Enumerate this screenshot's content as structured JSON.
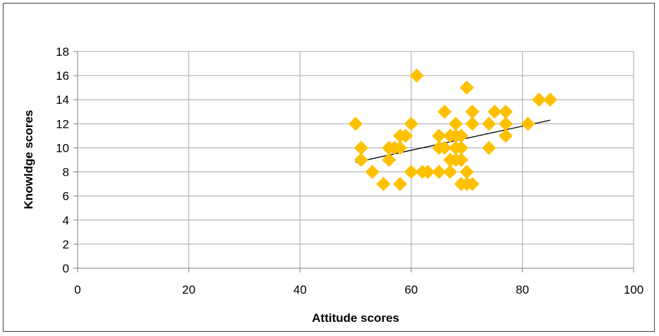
{
  "chart_data": {
    "type": "scatter",
    "title": "",
    "xlabel": "Attitude scores",
    "ylabel": "Knowldge scores",
    "xlim": [
      0,
      100
    ],
    "ylim": [
      0,
      18
    ],
    "xticks": [
      0,
      20,
      40,
      60,
      80,
      100
    ],
    "yticks": [
      0,
      2,
      4,
      6,
      8,
      10,
      12,
      14,
      16,
      18
    ],
    "grid": true,
    "legend": "none",
    "marker": "diamond",
    "marker_color": "#FFC000",
    "trendline": {
      "type": "linear",
      "from": [
        50,
        8.8
      ],
      "to": [
        85,
        12.3
      ],
      "color": "#000000"
    },
    "points": [
      [
        50,
        12
      ],
      [
        51,
        10
      ],
      [
        51,
        9
      ],
      [
        53,
        8
      ],
      [
        55,
        7
      ],
      [
        56,
        9
      ],
      [
        56,
        10
      ],
      [
        57,
        10
      ],
      [
        58,
        11
      ],
      [
        58,
        10
      ],
      [
        58,
        7
      ],
      [
        59,
        11
      ],
      [
        60,
        12
      ],
      [
        60,
        8
      ],
      [
        61,
        16
      ],
      [
        62,
        8
      ],
      [
        63,
        8
      ],
      [
        65,
        11
      ],
      [
        65,
        10
      ],
      [
        65,
        8
      ],
      [
        66,
        13
      ],
      [
        66,
        10
      ],
      [
        67,
        11
      ],
      [
        67,
        9
      ],
      [
        67,
        8
      ],
      [
        68,
        12
      ],
      [
        68,
        11
      ],
      [
        68,
        10
      ],
      [
        68,
        9
      ],
      [
        69,
        11
      ],
      [
        69,
        10
      ],
      [
        69,
        9
      ],
      [
        69,
        7
      ],
      [
        70,
        15
      ],
      [
        70,
        8
      ],
      [
        70,
        7
      ],
      [
        71,
        13
      ],
      [
        71,
        12
      ],
      [
        71,
        7
      ],
      [
        74,
        12
      ],
      [
        74,
        10
      ],
      [
        75,
        13
      ],
      [
        77,
        13
      ],
      [
        77,
        12
      ],
      [
        77,
        11
      ],
      [
        81,
        12
      ],
      [
        83,
        14
      ],
      [
        85,
        14
      ]
    ]
  }
}
